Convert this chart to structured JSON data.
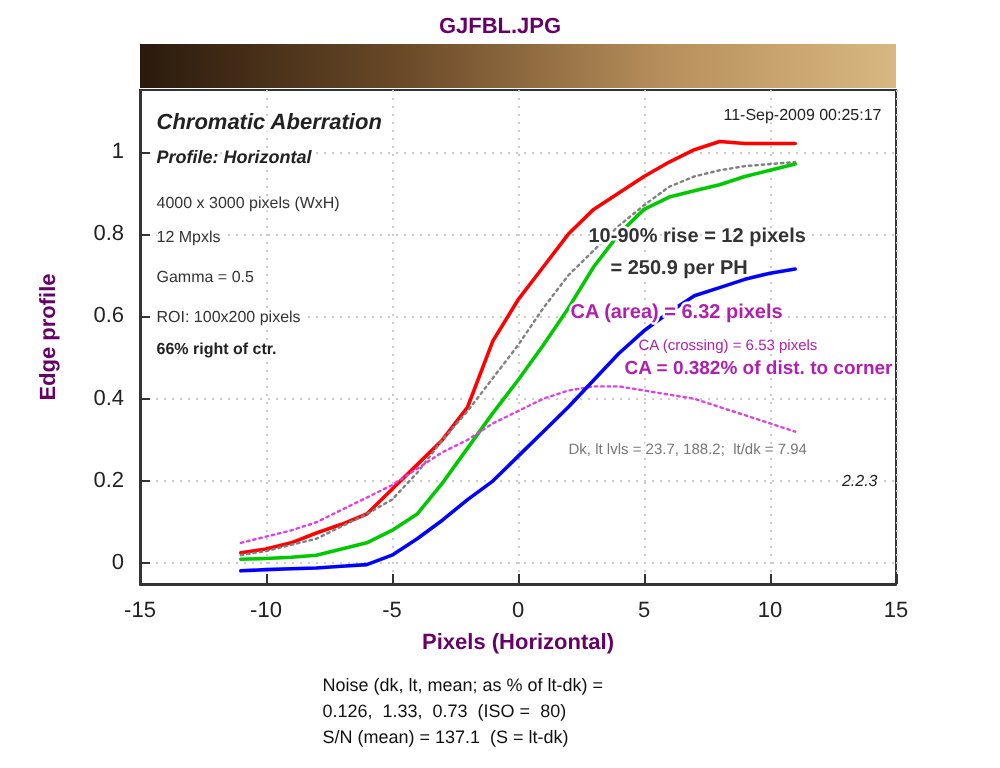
{
  "chart_data": {
    "type": "line",
    "title": "GJFBL.JPG",
    "xlabel": "Pixels (Horizontal)",
    "ylabel": "Edge profile",
    "x": [
      -11,
      -10,
      -9,
      -8,
      -7,
      -6,
      -5,
      -4,
      -3,
      -2,
      -1,
      0,
      1,
      2,
      3,
      4,
      5,
      6,
      7,
      8,
      9,
      10,
      11
    ],
    "series": [
      {
        "color": "#ff0000",
        "line_style": "solid",
        "values": [
          0.026,
          0.035,
          0.05,
          0.074,
          0.095,
          0.12,
          0.18,
          0.24,
          0.3,
          0.38,
          0.54,
          0.64,
          0.72,
          0.8,
          0.86,
          0.9,
          0.94,
          0.975,
          1.005,
          1.025,
          1.02,
          1.02,
          1.02
        ]
      },
      {
        "color": "#808080",
        "line_style": "dotted",
        "values": [
          0.02,
          0.03,
          0.045,
          0.06,
          0.09,
          0.12,
          0.155,
          0.22,
          0.3,
          0.37,
          0.45,
          0.53,
          0.62,
          0.7,
          0.76,
          0.82,
          0.87,
          0.915,
          0.94,
          0.955,
          0.965,
          0.97,
          0.975
        ]
      },
      {
        "color": "#00c800",
        "line_style": "solid",
        "values": [
          0.01,
          0.012,
          0.015,
          0.02,
          0.035,
          0.05,
          0.08,
          0.12,
          0.195,
          0.28,
          0.365,
          0.445,
          0.53,
          0.62,
          0.72,
          0.8,
          0.86,
          0.89,
          0.905,
          0.92,
          0.94,
          0.955,
          0.97
        ]
      },
      {
        "color": "#e040e0",
        "line_style": "dotted",
        "values": [
          0.05,
          0.065,
          0.08,
          0.1,
          0.13,
          0.16,
          0.19,
          0.23,
          0.27,
          0.3,
          0.34,
          0.37,
          0.4,
          0.42,
          0.43,
          0.43,
          0.42,
          0.41,
          0.4,
          0.38,
          0.36,
          0.34,
          0.32
        ]
      },
      {
        "color": "#0000ff",
        "line_style": "solid",
        "values": [
          -0.018,
          -0.015,
          -0.013,
          -0.011,
          -0.007,
          -0.003,
          0.02,
          0.06,
          0.105,
          0.155,
          0.2,
          0.26,
          0.32,
          0.38,
          0.445,
          0.51,
          0.565,
          0.61,
          0.65,
          0.67,
          0.69,
          0.705,
          0.715
        ]
      }
    ],
    "xlim": [
      -15,
      15
    ],
    "xticks": [
      -15,
      -10,
      -5,
      0,
      5,
      10,
      15
    ],
    "ylim": [
      -0.05,
      1.15
    ],
    "yticks": [
      0,
      0.2,
      0.4,
      0.6,
      0.8,
      1
    ],
    "grid": true,
    "marker": "none",
    "annotations": [
      "Chromatic Aberration",
      "Profile: Horizontal",
      "4000 x 3000 pixels (WxH)",
      "12 Mpxls",
      "Gamma = 0.5",
      "ROI: 100x200 pixels",
      "66% right of ctr.",
      "11-Sep-2009 00:25:17",
      "10-90% rise = 12 pixels",
      "= 250.9 per PH",
      "CA (area) = 6.32 pixels",
      "CA (crossing) = 6.53 pixels",
      "CA = 0.382% of dist. to corner",
      "Dk, lt lvls = 23.7, 188.2;  lt/dk = 7.94",
      "2.2.3",
      "Noise (dk, lt, mean; as % of lt-dk) =",
      "0.126,  1.33,  0.73  (ISO =  80)",
      "S/N (mean) = 137.1  (S = lt-dk)"
    ]
  }
}
